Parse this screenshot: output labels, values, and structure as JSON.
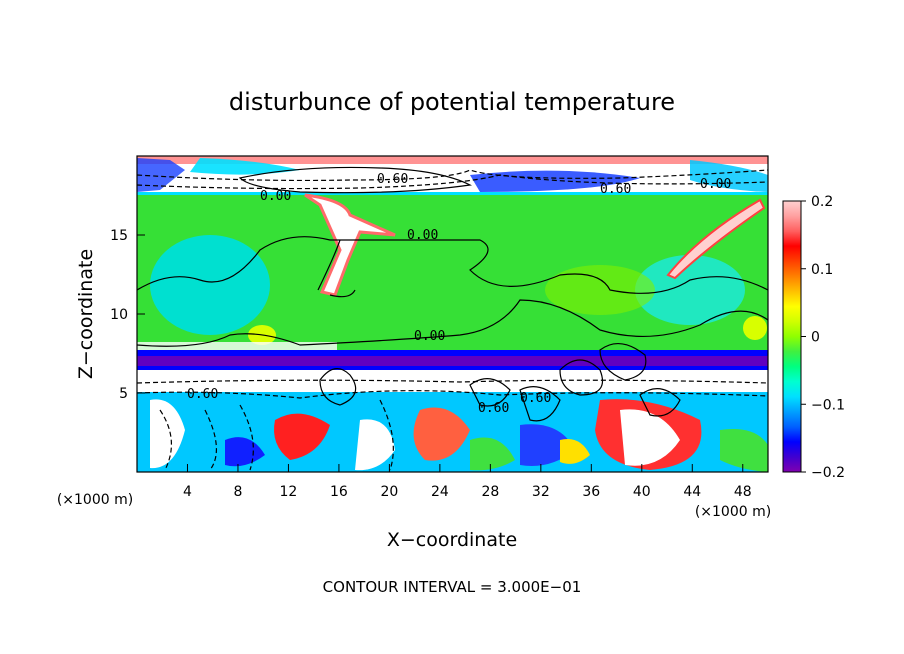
{
  "chart_data": {
    "type": "heatmap",
    "title": "disturbunce of potential temperature",
    "xlabel": "X−coordinate",
    "ylabel": "Z−coordinate",
    "x_unit_left": "(×1000 m)",
    "x_unit_right": "(×1000 m)",
    "xlim": [
      0,
      50
    ],
    "ylim": [
      0,
      20
    ],
    "x_ticks": [
      4,
      8,
      12,
      16,
      20,
      24,
      28,
      32,
      36,
      40,
      44,
      48
    ],
    "y_ticks": [
      5,
      10,
      15
    ],
    "colorbar": {
      "range": [
        -0.2,
        0.2
      ],
      "tick_values": [
        -0.2,
        -0.1,
        0,
        0.1,
        0.2
      ],
      "tick_labels": [
        "−0.2",
        "−0.1",
        "0",
        "0.1",
        "0.2"
      ],
      "colors": [
        "#8000b0",
        "#4000d0",
        "#0000ff",
        "#0060ff",
        "#00a0ff",
        "#00e0ff",
        "#00ffd0",
        "#00ff80",
        "#40f040",
        "#90ff00",
        "#d0ff00",
        "#ffff00",
        "#ffc000",
        "#ff8000",
        "#ff4000",
        "#ff0000",
        "#ff6060",
        "#ffa0a0",
        "#ffd0d0"
      ]
    },
    "contour_labels": [
      {
        "text": "0.60",
        "x": 41.5,
        "z": 17.9
      },
      {
        "text": "0.00",
        "x": 46,
        "z": 18.2
      },
      {
        "text": "0.60",
        "x": 20.5,
        "z": 18.5
      },
      {
        "text": "0.00",
        "x": 11,
        "z": 17.6
      },
      {
        "text": "0.00",
        "x": 23,
        "z": 15.0
      },
      {
        "text": "0.00",
        "x": 23.5,
        "z": 9.2
      },
      {
        "text": "0.60",
        "x": 5,
        "z": 4.9
      },
      {
        "text": "0.60",
        "x": 28,
        "z": 3.9
      },
      {
        "text": "0.60",
        "x": 32,
        "z": 4.5
      }
    ],
    "contour_interval": "CONTOUR INTERVAL = 3.000E−01"
  }
}
